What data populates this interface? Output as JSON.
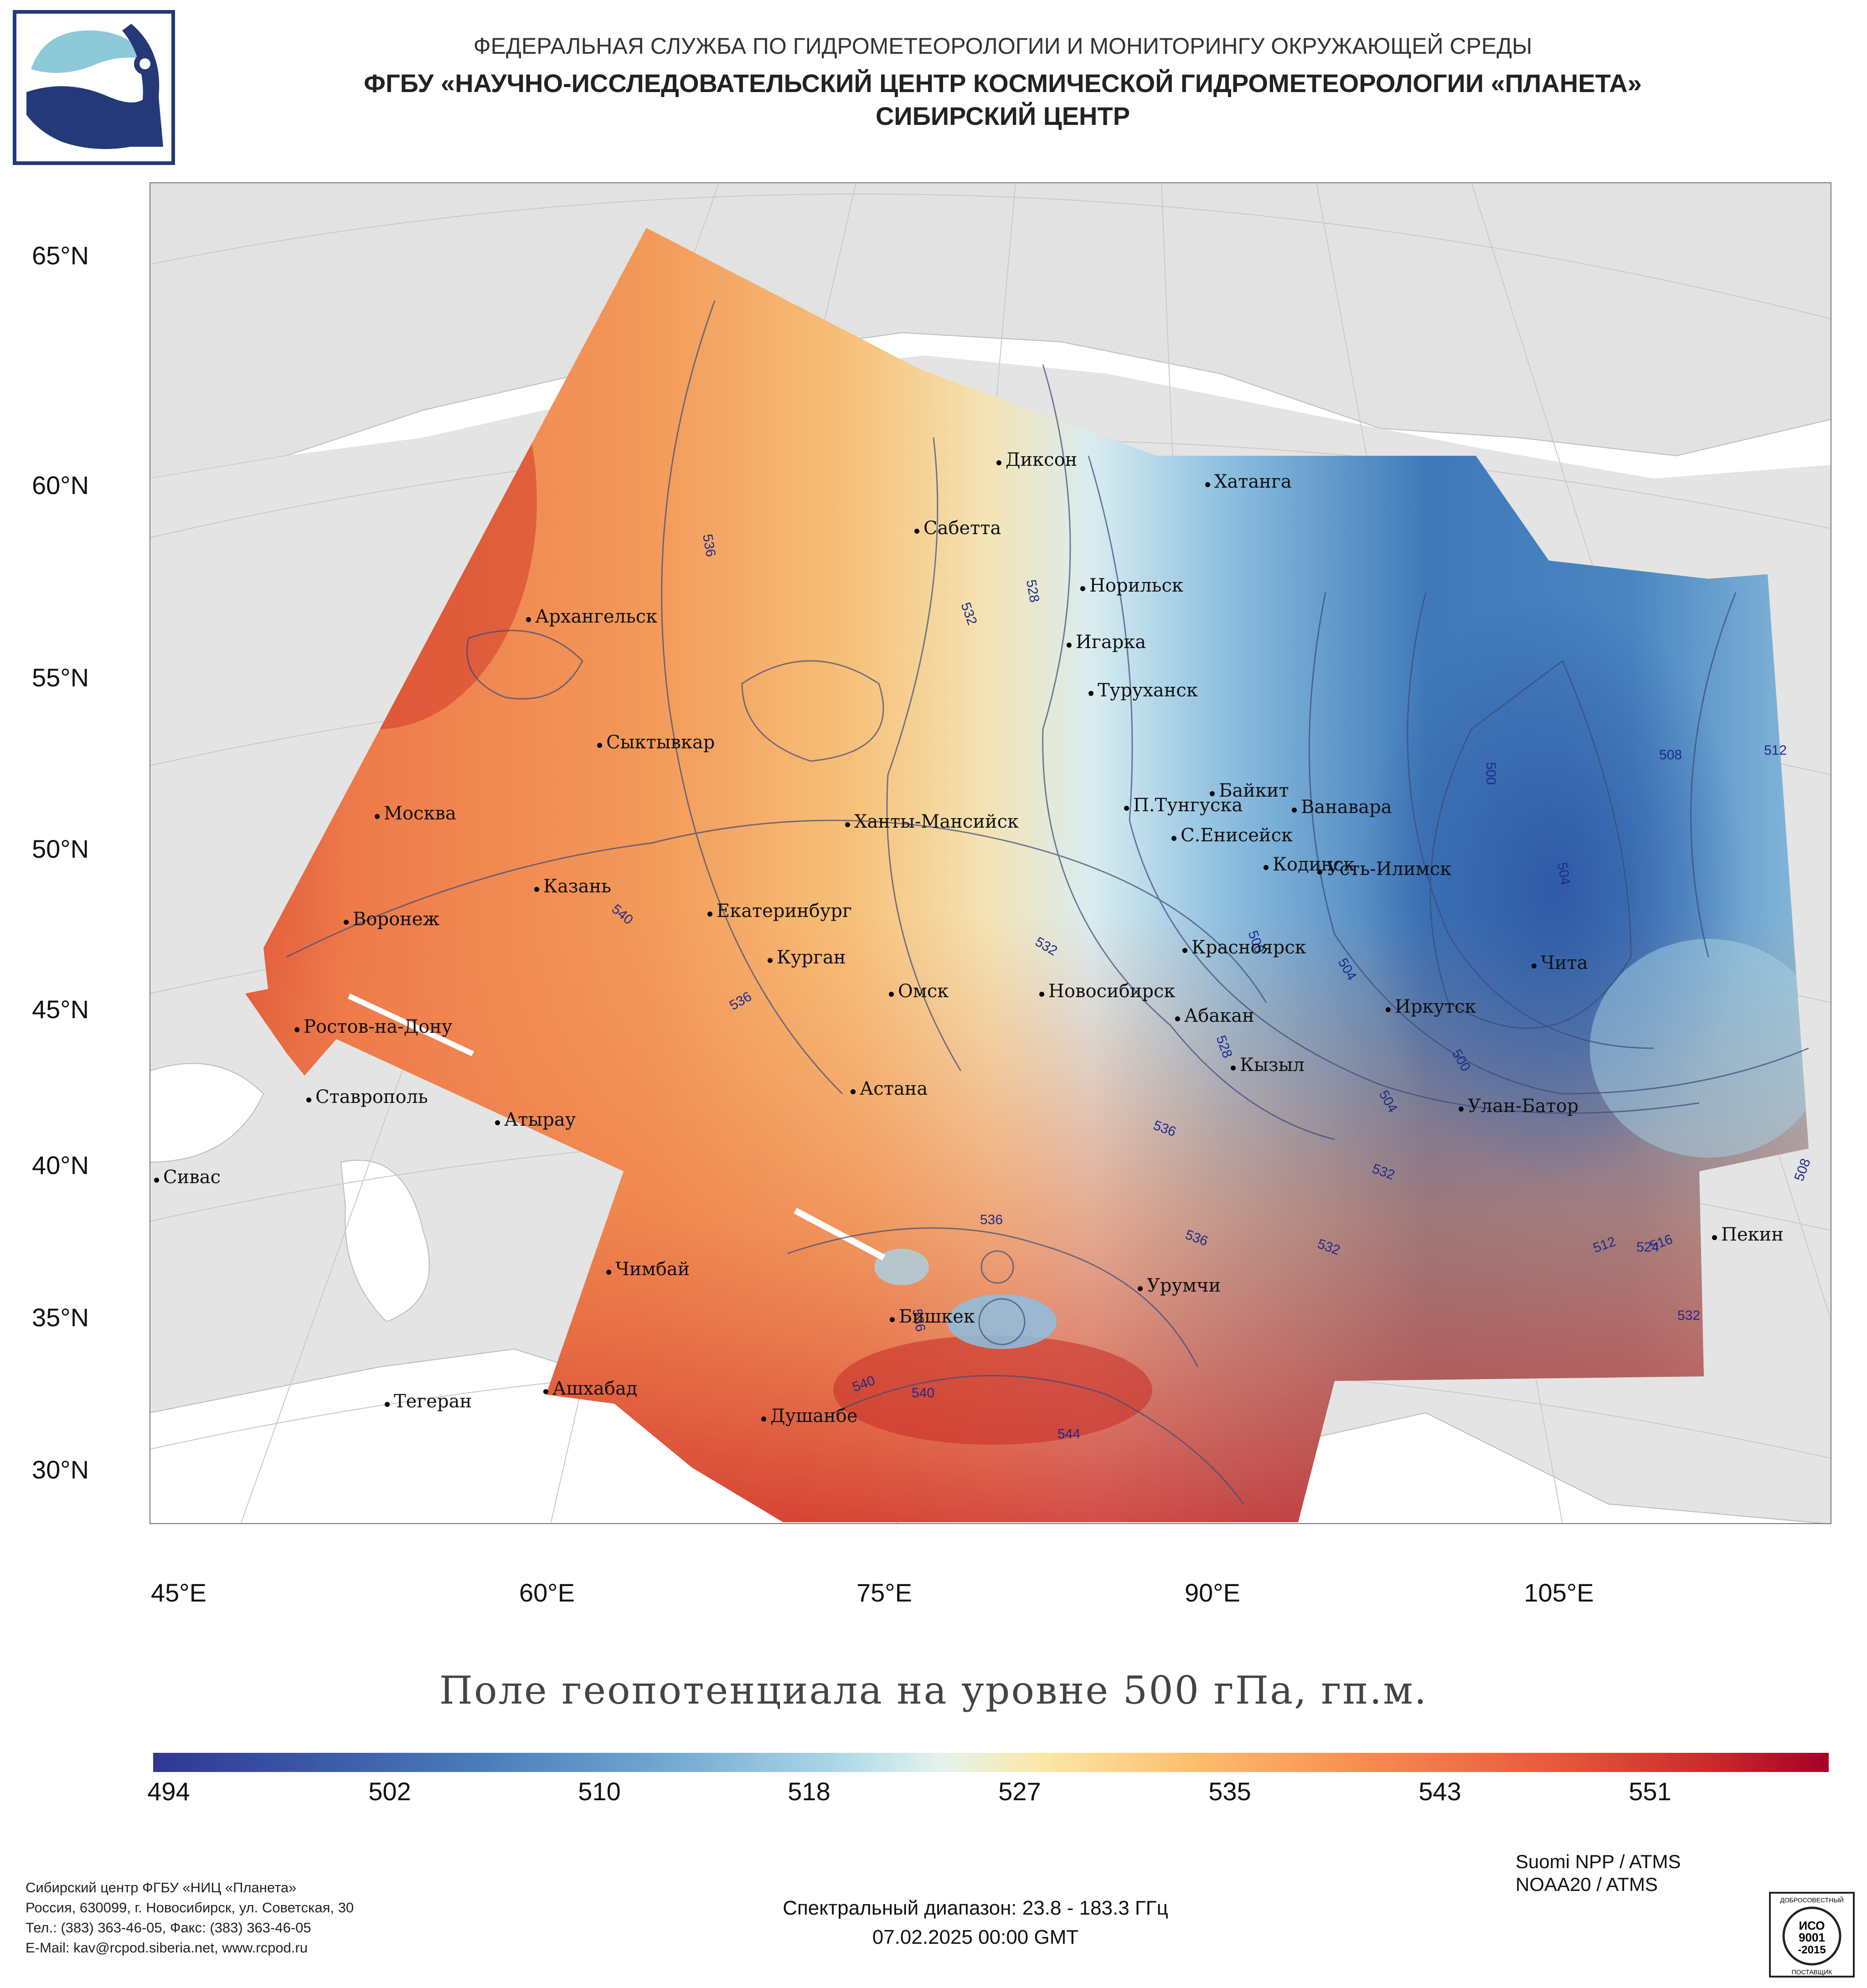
{
  "header": {
    "line1": "ФЕДЕРАЛЬНАЯ СЛУЖБА ПО ГИДРОМЕТЕОРОЛОГИИ И МОНИТОРИНГУ ОКРУЖАЮЩЕЙ СРЕДЫ",
    "line2": "ФГБУ «НАУЧНО-ИССЛЕДОВАТЕЛЬСКИЙ ЦЕНТР КОСМИЧЕСКОЙ ГИДРОМЕТЕОРОЛОГИИ «ПЛАНЕТА»",
    "line3": "СИБИРСКИЙ ЦЕНТР"
  },
  "map": {
    "lat_labels": [
      "65°N",
      "60°N",
      "55°N",
      "50°N",
      "45°N",
      "40°N",
      "35°N",
      "30°N"
    ],
    "lon_labels": [
      "45°E",
      "60°E",
      "75°E",
      "90°E",
      "105°E"
    ],
    "cities": [
      "Диксон",
      "Хатанга",
      "Сабетта",
      "Норильск",
      "Игарка",
      "Туруханск",
      "Архангельск",
      "Сыктывкар",
      "Москва",
      "Ханты-Мансийск",
      "Байкит",
      "П.Тунгуска",
      "Ванавара",
      "С.Енисейск",
      "Кодинск",
      "Усть-Илимск",
      "Казань",
      "Воронеж",
      "Екатеринбург",
      "Красноярск",
      "Курган",
      "Омск",
      "Новосибирск",
      "Чита",
      "Ростов-на-Дону",
      "Иркутск",
      "Абакан",
      "Кызыл",
      "Астана",
      "Ставрополь",
      "Атырау",
      "Улан-Батор",
      "Сивас",
      "Пекин",
      "Чимбай",
      "Урумчи",
      "Бишкек",
      "Ашхабад",
      "Тегеран",
      "Душанбе"
    ],
    "contour_labels": [
      "536",
      "532",
      "528",
      "540",
      "536",
      "532",
      "528",
      "536",
      "532",
      "536",
      "536",
      "536",
      "540",
      "540",
      "544",
      "532",
      "532",
      "524",
      "516",
      "512",
      "508",
      "512",
      "508",
      "504",
      "504",
      "500",
      "500",
      "500",
      "504"
    ]
  },
  "map_title": "Поле геопотенциала на уровне 500 гПа, гп.м.",
  "colorbar": {
    "ticks": [
      "494",
      "502",
      "510",
      "518",
      "527",
      "535",
      "543",
      "551"
    ],
    "colors": [
      "#313695",
      "#4a7ebb",
      "#a7d3e6",
      "#e4f3ee",
      "#fbe8a6",
      "#fdbe6e",
      "#f88d52",
      "#e7573a",
      "#c92a2a",
      "#a50026"
    ]
  },
  "footer": {
    "org": "Сибирский центр ФГБУ «НИЦ «Планета»",
    "address": "Россия, 630099, г. Новосибирск, ул. Советская, 30",
    "phones": "Тел.: (383) 363-46-05, Факс: (383) 363-46-05",
    "email": "E-Mail: kav@rcpod.siberia.net, www.rcpod.ru",
    "spectral": "Спектральный диапазон: 23.8 - 183.3 ГГц",
    "datetime": "07.02.2025 00:00 GMT",
    "sat1": "Suomi NPP / ATMS",
    "sat2": "NOAA20 / ATMS",
    "badge": {
      "top_text": "ДОБРОСОВЕСТНЫЙ",
      "line1": "ИСО",
      "line2": "9001",
      "line3": "-2015",
      "bottom_text": "ПОСТАВЩИК"
    }
  }
}
